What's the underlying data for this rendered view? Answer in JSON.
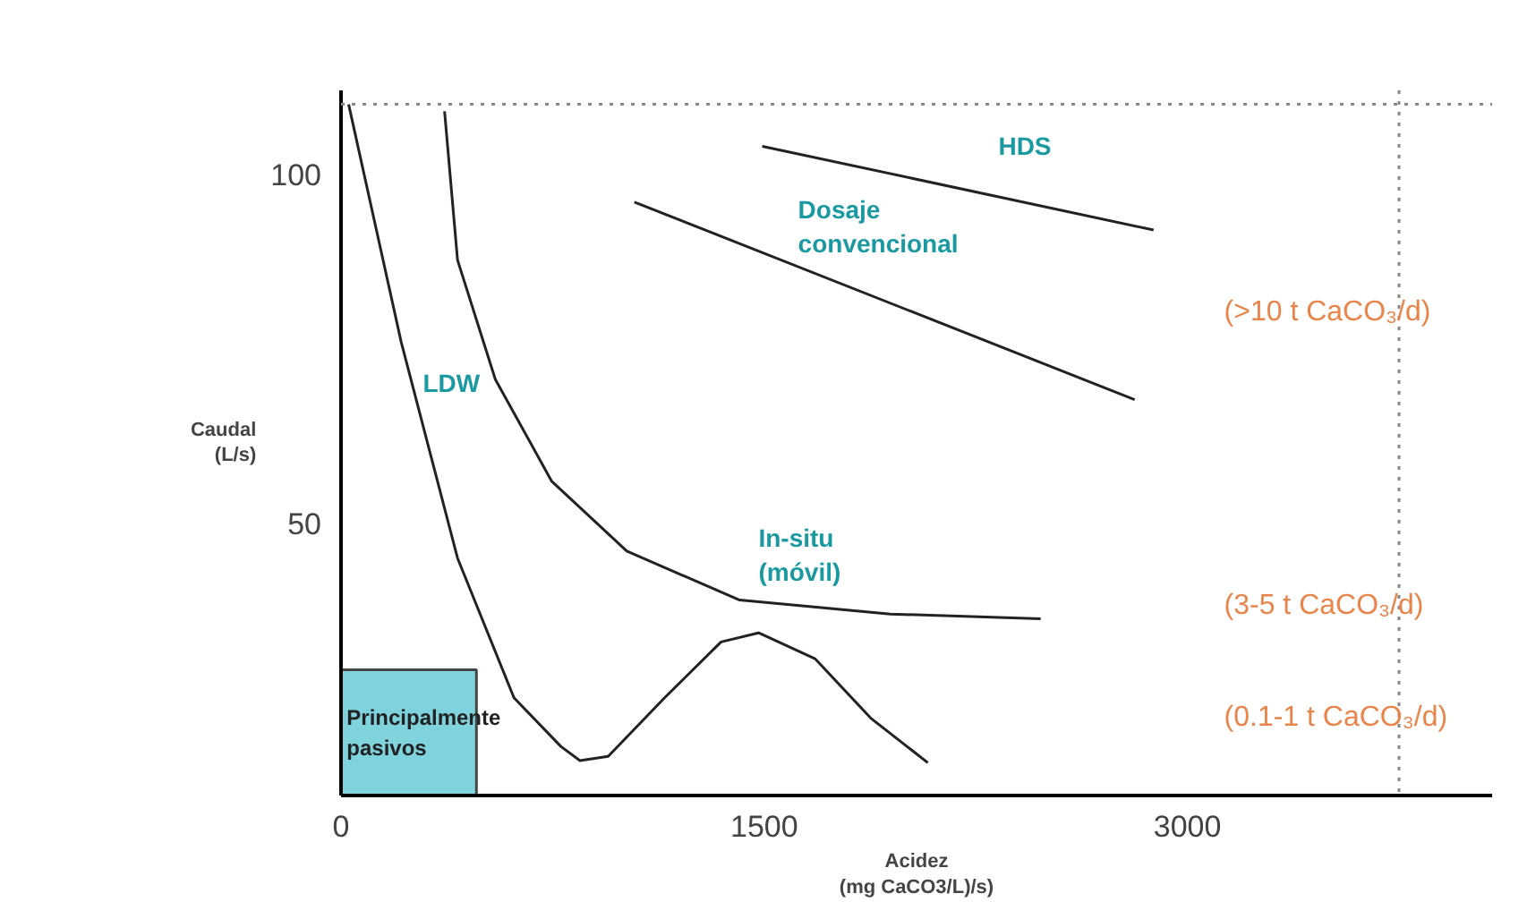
{
  "chart_data": {
    "type": "line",
    "xlabel": "Acidez\n(mg CaCO3/L)/s)",
    "ylabel": "Caudal\n(L/s)",
    "xlim": [
      0,
      4080
    ],
    "ylim": [
      11,
      112
    ],
    "xticks": [
      0,
      1500,
      3000
    ],
    "yticks": [
      50,
      100
    ],
    "grid": false,
    "marker": "none",
    "line_style": "solid",
    "series": [
      {
        "name": "Principalmente\npasivos",
        "color": "#7fd3dc",
        "type": "area",
        "x": [
          0,
          480
        ],
        "values": [
          29,
          29
        ]
      },
      {
        "name": "LDW",
        "color": "#222222",
        "x": [
          27,
          213,
          413,
          613,
          780,
          847,
          947,
          1147,
          1347,
          1480,
          1680,
          1880,
          2080
        ],
        "values": [
          110,
          76,
          45,
          25,
          18,
          16,
          16.6,
          25,
          33,
          34.3,
          30.6,
          22,
          15.7
        ]
      },
      {
        "name": "In-situ\n(móvil)",
        "color": "#222222",
        "x": [
          367,
          413,
          547,
          747,
          1013,
          1413,
          1947,
          2480
        ],
        "values": [
          109,
          87.7,
          70.6,
          56,
          46,
          39,
          37,
          36.3
        ]
      },
      {
        "name": "Dosaje\nconvencional",
        "color": "#222222",
        "x": [
          1040,
          2813
        ],
        "values": [
          96,
          67.7
        ]
      },
      {
        "name": "HDS",
        "color": "#222222",
        "x": [
          1493,
          2880
        ],
        "values": [
          104,
          92
        ]
      }
    ],
    "ref_lines": [
      {
        "axis": "x",
        "value": 3750,
        "line_style": "dotted",
        "color": "#888888"
      },
      {
        "axis": "y",
        "value": 110,
        "line_style": "dotted",
        "color": "#888888"
      }
    ],
    "annotations": [
      "(>10 t CaCO₃/d)",
      "(3-5 t CaCO₃/d)",
      "(0.1-1 t CaCO₃/d)"
    ]
  }
}
